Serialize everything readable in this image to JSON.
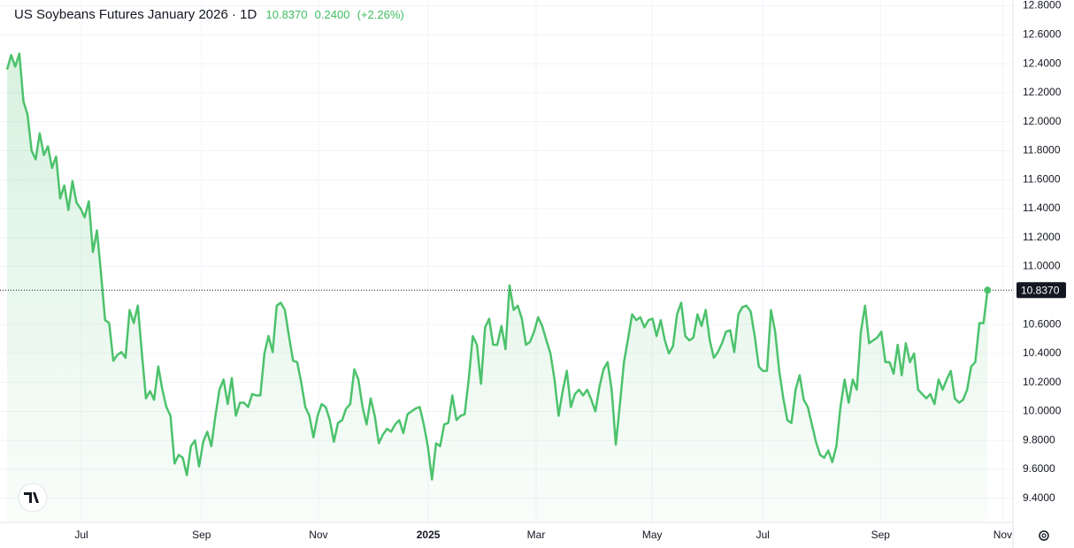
{
  "chart_data": {
    "type": "area",
    "title": "US Soybeans Futures January 2026 · 1D",
    "last": "10.8370",
    "change": "0.2400",
    "change_pct": "(+2.26%)",
    "color": "#4cc26c",
    "values": [
      12.36,
      12.46,
      12.38,
      12.47,
      12.14,
      12.05,
      11.8,
      11.74,
      11.92,
      11.77,
      11.83,
      11.68,
      11.76,
      11.47,
      11.56,
      11.39,
      11.59,
      11.44,
      11.4,
      11.34,
      11.45,
      11.1,
      11.25,
      10.95,
      10.63,
      10.61,
      10.35,
      10.39,
      10.41,
      10.37,
      10.7,
      10.61,
      10.73,
      10.4,
      10.09,
      10.14,
      10.08,
      10.31,
      10.15,
      10.03,
      9.97,
      9.64,
      9.7,
      9.68,
      9.56,
      9.76,
      9.8,
      9.62,
      9.79,
      9.86,
      9.76,
      9.97,
      10.15,
      10.22,
      10.05,
      10.23,
      9.97,
      10.06,
      10.06,
      10.03,
      10.12,
      10.11,
      10.11,
      10.4,
      10.52,
      10.41,
      10.73,
      10.75,
      10.7,
      10.52,
      10.35,
      10.34,
      10.2,
      10.03,
      9.97,
      9.82,
      9.97,
      10.05,
      10.03,
      9.94,
      9.79,
      9.92,
      9.94,
      10.02,
      10.05,
      10.29,
      10.22,
      10.03,
      9.91,
      10.09,
      9.97,
      9.78,
      9.84,
      9.88,
      9.86,
      9.91,
      9.94,
      9.85,
      9.98,
      10.0,
      10.02,
      10.03,
      9.91,
      9.76,
      9.53,
      9.78,
      9.76,
      9.91,
      9.92,
      10.11,
      9.94,
      9.97,
      9.98,
      10.22,
      10.52,
      10.46,
      10.19,
      10.58,
      10.64,
      10.46,
      10.46,
      10.59,
      10.43,
      10.87,
      10.7,
      10.73,
      10.64,
      10.46,
      10.48,
      10.55,
      10.65,
      10.59,
      10.49,
      10.4,
      10.22,
      9.97,
      10.14,
      10.28,
      10.03,
      10.12,
      10.15,
      10.11,
      10.15,
      10.08,
      10.0,
      10.17,
      10.29,
      10.34,
      10.15,
      9.77,
      10.05,
      10.34,
      10.5,
      10.67,
      10.63,
      10.65,
      10.58,
      10.63,
      10.64,
      10.52,
      10.63,
      10.49,
      10.4,
      10.45,
      10.67,
      10.75,
      10.52,
      10.49,
      10.51,
      10.67,
      10.59,
      10.7,
      10.49,
      10.37,
      10.41,
      10.47,
      10.55,
      10.56,
      10.41,
      10.67,
      10.72,
      10.73,
      10.69,
      10.52,
      10.31,
      10.28,
      10.28,
      10.7,
      10.55,
      10.28,
      10.09,
      9.94,
      9.92,
      10.15,
      10.25,
      10.08,
      10.03,
      9.91,
      9.79,
      9.7,
      9.68,
      9.73,
      9.65,
      9.76,
      10.03,
      10.22,
      10.06,
      10.22,
      10.15,
      10.55,
      10.73,
      10.47,
      10.49,
      10.51,
      10.55,
      10.34,
      10.34,
      10.26,
      10.46,
      10.25,
      10.47,
      10.34,
      10.4,
      10.15,
      10.12,
      10.09,
      10.12,
      10.05,
      10.22,
      10.15,
      10.22,
      10.28,
      10.09,
      10.06,
      10.08,
      10.15,
      10.31,
      10.34,
      10.61,
      10.61,
      10.837
    ],
    "xlim": [
      0,
      246
    ],
    "xticks": [
      {
        "value": 18.2,
        "label": "Jul"
      },
      {
        "value": 47.6,
        "label": "Sep"
      },
      {
        "value": 76.2,
        "label": "Nov"
      },
      {
        "value": 103.1,
        "label": "2025"
      },
      {
        "value": 129.5,
        "label": "Mar"
      },
      {
        "value": 157.9,
        "label": "May"
      },
      {
        "value": 185.0,
        "label": "Jul"
      },
      {
        "value": 213.8,
        "label": "Sep"
      },
      {
        "value": 243.7,
        "label": "Nov"
      }
    ],
    "ylim": [
      9.24,
      12.84
    ],
    "yticks": [
      {
        "value": 12.8,
        "label": "12.8000"
      },
      {
        "value": 12.6,
        "label": "12.6000"
      },
      {
        "value": 12.4,
        "label": "12.4000"
      },
      {
        "value": 12.2,
        "label": "12.2000"
      },
      {
        "value": 12.0,
        "label": "12.0000"
      },
      {
        "value": 11.8,
        "label": "11.8000"
      },
      {
        "value": 11.6,
        "label": "11.6000"
      },
      {
        "value": 11.4,
        "label": "11.4000"
      },
      {
        "value": 11.2,
        "label": "11.2000"
      },
      {
        "value": 11.0,
        "label": "11.0000"
      },
      {
        "value": 10.6,
        "label": "10.6000"
      },
      {
        "value": 10.4,
        "label": "10.4000"
      },
      {
        "value": 10.2,
        "label": "10.2000"
      },
      {
        "value": 10.0,
        "label": "10.0000"
      },
      {
        "value": 9.8,
        "label": "9.8000"
      },
      {
        "value": 9.6,
        "label": "9.6000"
      },
      {
        "value": 9.4,
        "label": "9.4000"
      }
    ],
    "grid": true
  }
}
